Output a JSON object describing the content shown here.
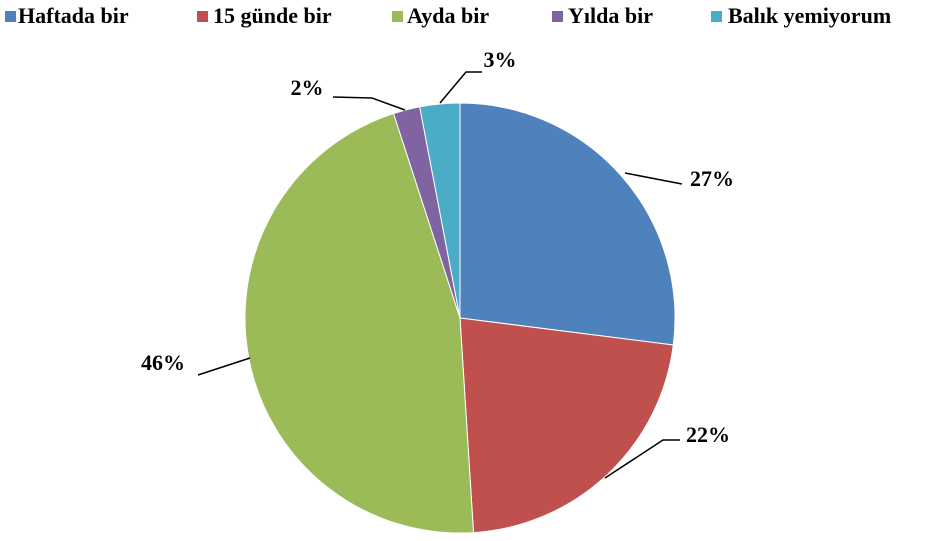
{
  "chart_data": {
    "type": "pie",
    "categories": [
      "Haftada bir",
      "15 günde bir",
      "Ayda bir",
      "Yılda bir",
      "Balık yemiyorum"
    ],
    "values": [
      27,
      22,
      46,
      2,
      3
    ],
    "value_labels": [
      "27%",
      "22%",
      "46%",
      "2%",
      "3%"
    ],
    "colors": [
      "#4f81bd",
      "#c0504d",
      "#9bbb59",
      "#8064a2",
      "#4bacc6"
    ],
    "legend": "top"
  }
}
